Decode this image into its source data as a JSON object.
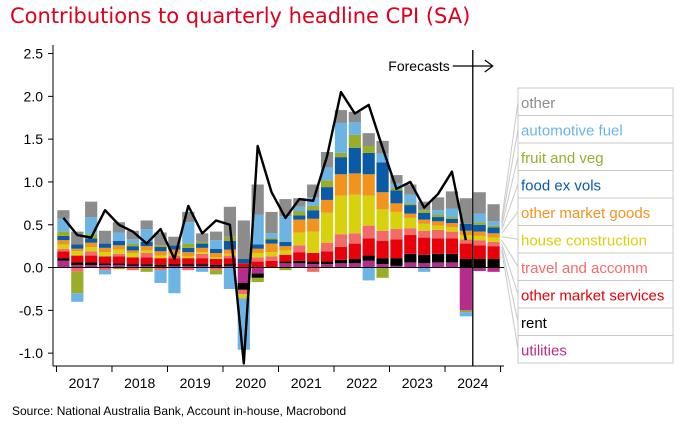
{
  "title": "Contributions to quarterly headline CPI (SA)",
  "source": "Source: National Australia Bank, Account in-house, Macrobond",
  "forecast_label": "Forecasts",
  "colors": {
    "title": "#e0001b",
    "other": "#8c8c8c",
    "automotive fuel": "#6cb4e4",
    "fruit and veg": "#9aad2a",
    "food ex vols": "#0a5aa6",
    "other market goods": "#f3931e",
    "house construction": "#d8d20e",
    "travel and accomm": "#f26b6b",
    "other market services": "#e8000a",
    "rent": "#000000",
    "utilities": "#b42d8c",
    "line": "#000000"
  },
  "chart_data": {
    "type": "bar",
    "subtype": "stacked bar with line",
    "title": "Contributions to quarterly headline CPI (SA)",
    "ylim": [
      -1.15,
      2.6
    ],
    "yticks": [
      "2.5",
      "2.0",
      "1.5",
      "1.0",
      "0.5",
      "0.0",
      "-0.5",
      "-1.0"
    ],
    "ytick_values": [
      2.5,
      2.0,
      1.5,
      1.0,
      0.5,
      0.0,
      -0.5,
      -1.0
    ],
    "xlabels": [
      "2017",
      "2018",
      "2019",
      "2020",
      "2021",
      "2022",
      "2023",
      "2024"
    ],
    "grid": false,
    "legend_position": "right",
    "forecast_start_index": 30,
    "categories": [
      "2017Q1",
      "2017Q2",
      "2017Q3",
      "2017Q4",
      "2018Q1",
      "2018Q2",
      "2018Q3",
      "2018Q4",
      "2019Q1",
      "2019Q2",
      "2019Q3",
      "2019Q4",
      "2020Q1",
      "2020Q2",
      "2020Q3",
      "2020Q4",
      "2021Q1",
      "2021Q2",
      "2021Q3",
      "2021Q4",
      "2022Q1",
      "2022Q2",
      "2022Q3",
      "2022Q4",
      "2023Q1",
      "2023Q2",
      "2023Q3",
      "2023Q4",
      "2024Q1",
      "2024Q2",
      "2024Q3",
      "2024Q4"
    ],
    "series": [
      {
        "name": "other",
        "values": [
          0.1,
          0.15,
          0.18,
          0.15,
          0.12,
          0.1,
          0.1,
          0.15,
          0.1,
          0.12,
          0.1,
          0.1,
          0.35,
          0.45,
          0.35,
          0.25,
          0.2,
          0.1,
          0.15,
          0.18,
          0.15,
          0.12,
          0.15,
          0.15,
          0.1,
          0.12,
          0.1,
          0.15,
          0.2,
          0.3,
          0.25,
          0.2
        ]
      },
      {
        "name": "automotive fuel",
        "values": [
          0.15,
          -0.1,
          0.2,
          -0.05,
          0.1,
          0.05,
          0.15,
          -0.15,
          -0.3,
          0.25,
          -0.05,
          0.1,
          -0.25,
          -0.6,
          0.35,
          0.05,
          0.3,
          0.05,
          0.1,
          0.15,
          0.35,
          0.15,
          -0.15,
          0.1,
          0.05,
          0.1,
          -0.05,
          0.05,
          0.1,
          -0.05,
          0.1,
          0.05
        ]
      },
      {
        "name": "fruit and veg",
        "values": [
          0.05,
          -0.25,
          0.05,
          0.0,
          -0.02,
          0.03,
          -0.05,
          0.02,
          0.0,
          0.05,
          0.02,
          -0.05,
          0.05,
          0.0,
          -0.05,
          0.02,
          -0.03,
          0.05,
          0.05,
          0.08,
          0.05,
          0.15,
          0.08,
          -0.12,
          0.03,
          0.02,
          0.03,
          0.03,
          0.02,
          -0.02,
          0.03,
          0.02
        ]
      },
      {
        "name": "food ex vols",
        "values": [
          0.05,
          0.05,
          0.05,
          0.05,
          0.05,
          0.05,
          0.05,
          0.05,
          0.05,
          0.05,
          0.05,
          0.05,
          0.1,
          0.05,
          0.05,
          0.05,
          0.05,
          0.05,
          0.1,
          0.15,
          0.2,
          0.3,
          0.25,
          0.35,
          0.15,
          0.1,
          0.08,
          0.05,
          0.05,
          0.08,
          0.08,
          0.07
        ]
      },
      {
        "name": "other market goods",
        "values": [
          0.05,
          0.03,
          0.05,
          0.05,
          0.05,
          0.03,
          0.05,
          0.05,
          0.05,
          0.05,
          0.05,
          0.05,
          0.05,
          0.0,
          0.05,
          0.1,
          0.05,
          0.15,
          0.15,
          0.15,
          0.25,
          0.25,
          0.25,
          0.2,
          0.1,
          0.05,
          0.05,
          0.05,
          0.05,
          0.05,
          0.05,
          0.05
        ]
      },
      {
        "name": "house construction",
        "values": [
          0.05,
          0.05,
          0.05,
          0.05,
          0.05,
          0.05,
          0.03,
          0.03,
          0.02,
          0.02,
          0.02,
          0.02,
          0.02,
          -0.05,
          0.05,
          0.05,
          0.05,
          0.15,
          0.25,
          0.35,
          0.45,
          0.45,
          0.35,
          0.25,
          0.2,
          0.12,
          0.08,
          0.05,
          0.05,
          0.05,
          0.05,
          0.05
        ]
      },
      {
        "name": "travel and accomm",
        "values": [
          0.03,
          -0.05,
          0.05,
          -0.03,
          0.03,
          -0.03,
          0.05,
          -0.03,
          0.03,
          -0.03,
          0.05,
          -0.03,
          0.03,
          -0.05,
          0.05,
          0.05,
          0.0,
          0.08,
          -0.05,
          0.1,
          0.15,
          0.12,
          0.15,
          0.12,
          0.12,
          0.08,
          0.08,
          0.1,
          0.08,
          0.05,
          0.06,
          0.05
        ]
      },
      {
        "name": "other market services",
        "values": [
          0.08,
          0.08,
          0.08,
          0.08,
          0.08,
          0.08,
          0.08,
          0.08,
          0.07,
          0.07,
          0.07,
          0.07,
          0.07,
          0.05,
          0.07,
          0.08,
          0.08,
          0.1,
          0.1,
          0.12,
          0.15,
          0.18,
          0.2,
          0.2,
          0.22,
          0.22,
          0.2,
          0.18,
          0.18,
          0.18,
          0.16,
          0.15
        ]
      },
      {
        "name": "rent",
        "values": [
          0.03,
          0.03,
          0.03,
          0.02,
          0.02,
          0.02,
          0.02,
          0.02,
          0.02,
          0.02,
          0.02,
          0.02,
          0.02,
          -0.08,
          -0.05,
          0.0,
          0.02,
          0.03,
          0.03,
          0.03,
          0.04,
          0.05,
          0.06,
          0.07,
          0.09,
          0.1,
          0.1,
          0.1,
          0.1,
          0.1,
          0.1,
          0.1
        ]
      },
      {
        "name": "utilities",
        "values": [
          0.08,
          0.03,
          0.03,
          0.03,
          0.03,
          0.02,
          0.02,
          0.01,
          0.02,
          0.02,
          0.02,
          0.01,
          0.02,
          -0.18,
          -0.07,
          0.0,
          0.05,
          0.05,
          0.04,
          0.04,
          0.05,
          0.05,
          0.08,
          0.04,
          0.02,
          0.06,
          0.05,
          0.06,
          0.06,
          -0.5,
          -0.04,
          -0.05
        ]
      }
    ],
    "line": {
      "name": "headline",
      "values": [
        0.58,
        0.38,
        0.35,
        0.67,
        0.5,
        0.42,
        0.28,
        0.45,
        0.1,
        0.72,
        0.4,
        0.55,
        0.5,
        -1.12,
        1.42,
        0.88,
        0.58,
        0.8,
        0.78,
        1.3,
        2.05,
        1.8,
        1.9,
        1.4,
        0.92,
        1.0,
        0.7,
        0.86,
        1.12,
        0.32
      ]
    }
  }
}
